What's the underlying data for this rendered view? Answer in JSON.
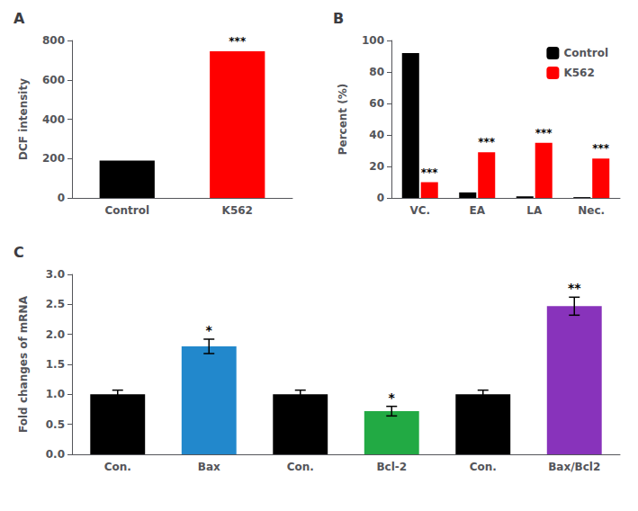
{
  "chart_data": [
    {
      "type": "bar",
      "title": "A",
      "categories": [
        "Control",
        "K562"
      ],
      "values": [
        190,
        745
      ],
      "colors": [
        "#000000",
        "#ff0000"
      ],
      "annotations": [
        null,
        "***"
      ],
      "ylabel": "DCF intensity",
      "ylim": [
        0,
        800
      ],
      "yticks": [
        0,
        200,
        400,
        600,
        800
      ],
      "grid": false
    },
    {
      "type": "bar",
      "title": "B",
      "categories": [
        "VC.",
        "EA",
        "LA",
        "Nec."
      ],
      "series": [
        {
          "name": "Control",
          "color": "#000000",
          "values": [
            92,
            3.5,
            1.0,
            0.5
          ]
        },
        {
          "name": "K562",
          "color": "#ff0000",
          "values": [
            10,
            29,
            35,
            25
          ],
          "annotations": [
            "***",
            "***",
            "***",
            "***"
          ]
        }
      ],
      "ylabel": "Percent (%)",
      "ylim": [
        0,
        100
      ],
      "yticks": [
        0,
        20,
        40,
        60,
        80,
        100
      ],
      "legend": "upper right",
      "grid": false
    },
    {
      "type": "bar",
      "title": "C",
      "categories": [
        "Con.",
        "Bax",
        "Con.",
        "Bcl-2",
        "Con.",
        "Bax/Bcl2"
      ],
      "values": [
        1.0,
        1.8,
        1.0,
        0.72,
        1.0,
        2.47
      ],
      "errors": [
        0.07,
        0.12,
        0.07,
        0.08,
        0.07,
        0.15
      ],
      "colors": [
        "#000000",
        "#2288cc",
        "#000000",
        "#22aa44",
        "#000000",
        "#8833bb"
      ],
      "annotations": [
        null,
        "*",
        null,
        "*",
        null,
        "**"
      ],
      "ylabel": "Fold changes of mRNA",
      "ylim": [
        0.0,
        3.0
      ],
      "yticks": [
        {
          "value": 0.0,
          "label": "0.0"
        },
        {
          "value": 0.5,
          "label": "0.5"
        },
        {
          "value": 1.0,
          "label": "1.0"
        },
        {
          "value": 1.5,
          "label": "1.5"
        },
        {
          "value": 2.0,
          "label": "2.0"
        },
        {
          "value": 2.5,
          "label": "2.5"
        },
        {
          "value": 3.0,
          "label": "3.0"
        }
      ],
      "grid": false
    }
  ]
}
